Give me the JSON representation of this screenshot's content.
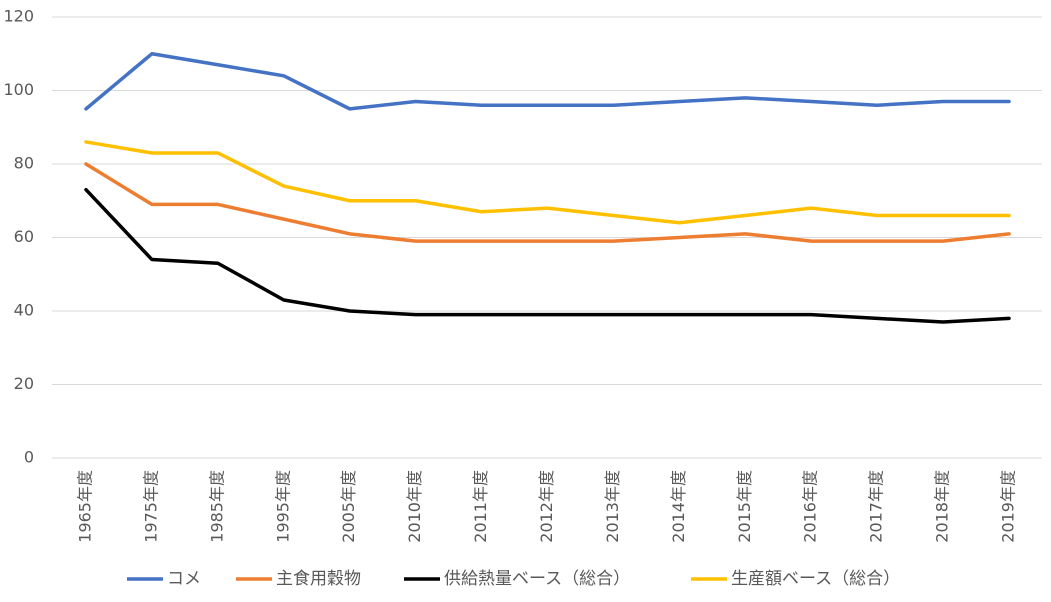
{
  "chart_data": {
    "type": "line",
    "title": "",
    "xlabel": "",
    "ylabel": "",
    "ylim": [
      0,
      120
    ],
    "yticks": [
      0,
      20,
      40,
      60,
      80,
      100,
      120
    ],
    "grid": true,
    "legend_position": "bottom",
    "categories": [
      "1965年度",
      "1975年度",
      "1985年度",
      "1995年度",
      "2005年度",
      "2010年度",
      "2011年度",
      "2012年度",
      "2013年度",
      "2014年度",
      "2015年度",
      "2016年度",
      "2017年度",
      "2018年度",
      "2019年度"
    ],
    "series": [
      {
        "name": "コメ",
        "color": "#4472c4",
        "values": [
          95,
          110,
          107,
          104,
          95,
          97,
          96,
          96,
          96,
          97,
          98,
          97,
          96,
          97,
          97
        ]
      },
      {
        "name": "主食用穀物",
        "color": "#ed7d31",
        "values": [
          80,
          69,
          69,
          65,
          61,
          59,
          59,
          59,
          59,
          60,
          61,
          59,
          59,
          59,
          61
        ]
      },
      {
        "name": "供給熱量ベース（総合）",
        "color": "#000000",
        "values": [
          73,
          54,
          53,
          43,
          40,
          39,
          39,
          39,
          39,
          39,
          39,
          39,
          38,
          37,
          38
        ]
      },
      {
        "name": "生産額ベース（総合）",
        "color": "#ffc000",
        "values": [
          86,
          83,
          83,
          74,
          70,
          70,
          67,
          68,
          66,
          64,
          66,
          68,
          66,
          66,
          66
        ]
      }
    ]
  }
}
